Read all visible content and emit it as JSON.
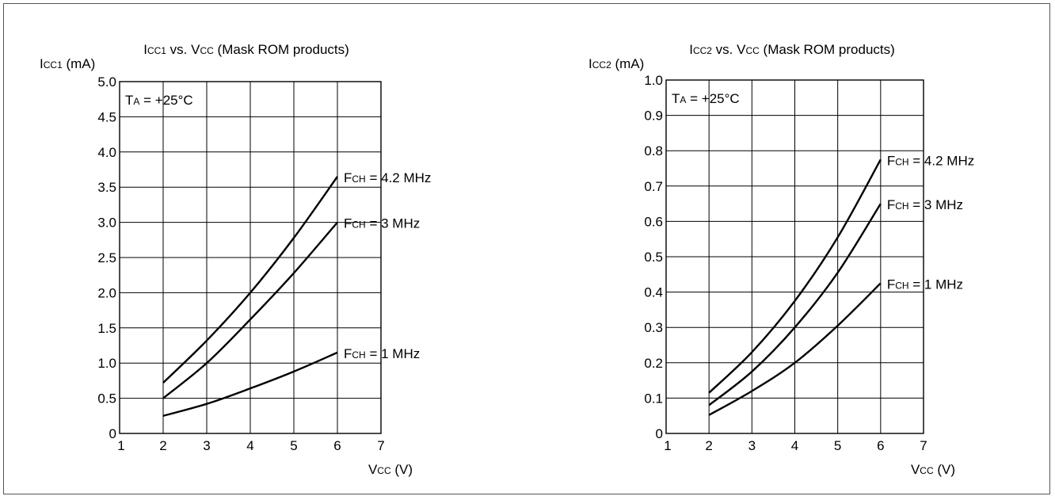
{
  "chart_data": [
    {
      "type": "line",
      "title": {
        "main": "I",
        "sub": "CC1",
        "rest": " vs. V",
        "sub2": "CC",
        "tail": " (Mask ROM products)"
      },
      "ylabel": {
        "main": "I",
        "sub": "CC1",
        "tail": " (mA)"
      },
      "xlabel": {
        "main": "V",
        "sub": "CC",
        "tail": " (V)"
      },
      "condition": {
        "main": "T",
        "sub": "A",
        "tail": " = +25°C"
      },
      "xlim": [
        1,
        7
      ],
      "ylim": [
        0,
        5
      ],
      "xticks": [
        "1",
        "2",
        "3",
        "4",
        "5",
        "6",
        "7"
      ],
      "yticks": [
        "0",
        "0.5",
        "1.0",
        "1.5",
        "2.0",
        "2.5",
        "3.0",
        "3.5",
        "4.0",
        "4.5",
        "5.0"
      ],
      "grid": true,
      "series": [
        {
          "name": {
            "main": "F",
            "sub": "CH",
            "tail": " = 4.2 MHz"
          },
          "x": [
            2,
            3,
            4,
            5,
            6
          ],
          "y": [
            0.72,
            1.32,
            2.0,
            2.78,
            3.65
          ]
        },
        {
          "name": {
            "main": "F",
            "sub": "CH",
            "tail": " = 3 MHz"
          },
          "x": [
            2,
            3,
            4,
            5,
            6
          ],
          "y": [
            0.5,
            1.0,
            1.62,
            2.28,
            3.0
          ]
        },
        {
          "name": {
            "main": "F",
            "sub": "CH",
            "tail": " = 1 MHz"
          },
          "x": [
            2,
            3,
            4,
            5,
            6
          ],
          "y": [
            0.25,
            0.42,
            0.64,
            0.88,
            1.15
          ]
        }
      ]
    },
    {
      "type": "line",
      "title": {
        "main": "I",
        "sub": "CC2",
        "rest": " vs. V",
        "sub2": "CC",
        "tail": " (Mask ROM products)"
      },
      "ylabel": {
        "main": "I",
        "sub": "CC2",
        "tail": " (mA)"
      },
      "xlabel": {
        "main": "V",
        "sub": "CC",
        "tail": " (V)"
      },
      "condition": {
        "main": "T",
        "sub": "A",
        "tail": " = +25°C"
      },
      "xlim": [
        1,
        7
      ],
      "ylim": [
        0,
        1
      ],
      "xticks": [
        "1",
        "2",
        "3",
        "4",
        "5",
        "6",
        "7"
      ],
      "yticks": [
        "0",
        "0.1",
        "0.2",
        "0.3",
        "0.4",
        "0.5",
        "0.6",
        "0.7",
        "0.8",
        "0.9",
        "1.0"
      ],
      "grid": true,
      "series": [
        {
          "name": {
            "main": "F",
            "sub": "CH",
            "tail": " = 4.2 MHz"
          },
          "x": [
            2,
            3,
            4,
            5,
            6
          ],
          "y": [
            0.115,
            0.23,
            0.375,
            0.555,
            0.775
          ]
        },
        {
          "name": {
            "main": "F",
            "sub": "CH",
            "tail": " = 3 MHz"
          },
          "x": [
            2,
            3,
            4,
            5,
            6
          ],
          "y": [
            0.08,
            0.175,
            0.3,
            0.455,
            0.65
          ]
        },
        {
          "name": {
            "main": "F",
            "sub": "CH",
            "tail": " = 1 MHz"
          },
          "x": [
            2,
            3,
            4,
            5,
            6
          ],
          "y": [
            0.052,
            0.12,
            0.2,
            0.305,
            0.425
          ]
        }
      ]
    }
  ]
}
